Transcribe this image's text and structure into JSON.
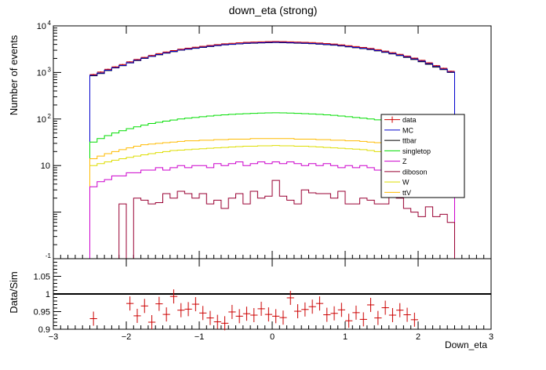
{
  "chart_data": [
    {
      "type": "histogram",
      "title": "down_eta (strong)",
      "ylabel": "Number  of  events",
      "xlabel": "",
      "ylog": true,
      "xlim": [
        -3,
        3
      ],
      "ylim": [
        0.1,
        10000
      ],
      "bin_edges_start": -2.5,
      "bin_width": 0.1,
      "y_ticks": [
        {
          "label": "10",
          "sup": "4",
          "value": 10000
        },
        {
          "label": "10",
          "sup": "3",
          "value": 1000
        },
        {
          "label": "10",
          "sup": "2",
          "value": 100
        },
        {
          "label": "10",
          "sup": "",
          "value": 10
        },
        {
          "label": "",
          "sup": "-1",
          "value": 0.1
        }
      ],
      "legend_position": "right",
      "legend": [
        {
          "name": "data",
          "color": "#cc0000",
          "marker": "cross"
        },
        {
          "name": "MC",
          "color": "#0000cc",
          "marker": "line"
        },
        {
          "name": "ttbar",
          "color": "#000000",
          "marker": "line"
        },
        {
          "name": "singletop",
          "color": "#00dd00",
          "marker": "line"
        },
        {
          "name": "Z",
          "color": "#cc00cc",
          "marker": "line"
        },
        {
          "name": "diboson",
          "color": "#990033",
          "marker": "line"
        },
        {
          "name": "W",
          "color": "#dddd00",
          "marker": "line"
        },
        {
          "name": "ttV",
          "color": "#ffbb00",
          "marker": "line"
        }
      ],
      "series": [
        {
          "name": "ttbar",
          "color": "#000000",
          "values": [
            850,
            950,
            1100,
            1250,
            1400,
            1600,
            1800,
            2000,
            2200,
            2400,
            2600,
            2800,
            3000,
            3150,
            3300,
            3450,
            3600,
            3750,
            3900,
            4000,
            4100,
            4200,
            4250,
            4300,
            4350,
            4380,
            4350,
            4300,
            4250,
            4200,
            4150,
            4050,
            3950,
            3850,
            3700,
            3550,
            3400,
            3250,
            3100,
            2900,
            2700,
            2500,
            2300,
            2100,
            1900,
            1700,
            1500,
            1300,
            1150,
            1000
          ]
        },
        {
          "name": "MC",
          "color": "#0000cc",
          "values": [
            870,
            970,
            1120,
            1270,
            1420,
            1620,
            1830,
            2030,
            2230,
            2440,
            2640,
            2840,
            3040,
            3190,
            3350,
            3500,
            3650,
            3800,
            3950,
            4050,
            4150,
            4250,
            4300,
            4350,
            4400,
            4430,
            4400,
            4350,
            4300,
            4250,
            4200,
            4100,
            4000,
            3900,
            3750,
            3600,
            3450,
            3300,
            3150,
            2950,
            2750,
            2550,
            2350,
            2150,
            1950,
            1750,
            1550,
            1350,
            1180,
            1020
          ]
        },
        {
          "name": "singletop",
          "color": "#00dd00",
          "values": [
            32,
            38,
            44,
            50,
            56,
            62,
            68,
            74,
            80,
            85,
            90,
            95,
            100,
            104,
            108,
            112,
            116,
            120,
            123,
            126,
            128,
            130,
            132,
            134,
            135,
            136,
            135,
            134,
            132,
            130,
            128,
            126,
            123,
            120,
            116,
            112,
            108,
            104,
            100,
            96,
            92,
            88,
            84,
            80,
            76,
            72,
            68,
            64,
            60,
            56
          ]
        },
        {
          "name": "W",
          "color": "#dddd00",
          "values": [
            10,
            11,
            12,
            13,
            14,
            15,
            16,
            17,
            18,
            19,
            20,
            21,
            21.5,
            22,
            22.5,
            23,
            23.5,
            24,
            24.5,
            25,
            25.5,
            26,
            26,
            26.5,
            26.5,
            27,
            26.5,
            26.5,
            26,
            26,
            25.5,
            25,
            24.5,
            24,
            23.5,
            23,
            22.5,
            22,
            21,
            20,
            19,
            18,
            17,
            16,
            15,
            14,
            13,
            12,
            11,
            10
          ]
        },
        {
          "name": "ttV",
          "color": "#ffbb00",
          "values": [
            14,
            16,
            18,
            20,
            22,
            24,
            26,
            28,
            29,
            30,
            31,
            32,
            33,
            34,
            34,
            35,
            35,
            36,
            36,
            37,
            37,
            37,
            38,
            38,
            38,
            38,
            38,
            38,
            37,
            37,
            37,
            36,
            36,
            35,
            35,
            34,
            34,
            33,
            32,
            31,
            30,
            29,
            28,
            27,
            26,
            25,
            24,
            22,
            20,
            18
          ]
        },
        {
          "name": "Z",
          "color": "#cc00cc",
          "values": [
            3.5,
            4.5,
            5,
            6,
            6,
            7,
            7,
            8,
            8,
            9,
            8,
            9,
            10,
            9,
            10,
            10,
            9,
            11,
            10,
            11,
            12,
            10,
            11,
            12,
            11,
            12,
            11,
            12,
            11,
            10,
            11,
            10,
            11,
            10,
            9,
            10,
            9,
            10,
            9,
            8,
            8,
            7,
            7,
            6,
            6,
            5,
            5,
            4.5,
            4,
            3.5
          ]
        },
        {
          "name": "diboson",
          "color": "#990033",
          "values": [
            0.1,
            0.1,
            0.1,
            0.1,
            1.5,
            0.1,
            2,
            1.8,
            1.5,
            1.6,
            2.5,
            2,
            2.8,
            2.5,
            2,
            2.5,
            1.5,
            1.8,
            1.2,
            2,
            2.5,
            1.5,
            2.8,
            2,
            2.2,
            4.8,
            2.2,
            1.8,
            1.5,
            3,
            2.6,
            2.5,
            2.5,
            2,
            2.8,
            1.5,
            1.5,
            2,
            1.8,
            1.5,
            1.5,
            2.2,
            2,
            1.2,
            1,
            0.8,
            1.3,
            0.8,
            0.9,
            0.6
          ]
        },
        {
          "name": "data",
          "color": "#cc0000",
          "values": [
            900,
            1020,
            1170,
            1320,
            1480,
            1690,
            1900,
            2110,
            2320,
            2540,
            2750,
            2950,
            3160,
            3320,
            3480,
            3640,
            3800,
            3960,
            4120,
            4220,
            4330,
            4430,
            4490,
            4540,
            4590,
            4620,
            4590,
            4540,
            4480,
            4430,
            4380,
            4280,
            4170,
            4070,
            3910,
            3750,
            3600,
            3440,
            3280,
            3080,
            2870,
            2660,
            2450,
            2240,
            2030,
            1820,
            1610,
            1400,
            1230,
            1060
          ]
        }
      ]
    },
    {
      "type": "scatter",
      "xlabel": "Down_eta",
      "ylabel": "Data/Sim",
      "xlim": [
        -3,
        3
      ],
      "ylim": [
        0.9,
        1.1
      ],
      "x_ticks": [
        "−3",
        "−2",
        "−1",
        "0",
        "1",
        "2",
        "3"
      ],
      "y_ticks": [
        "0.9",
        "0.95",
        "1",
        "1.05"
      ],
      "reference_line": 1,
      "points": {
        "x": [
          -2.45,
          -1.95,
          -1.85,
          -1.75,
          -1.65,
          -1.55,
          -1.45,
          -1.35,
          -1.25,
          -1.15,
          -1.05,
          -0.95,
          -0.85,
          -0.75,
          -0.65,
          -0.55,
          -0.45,
          -0.35,
          -0.25,
          -0.15,
          -0.05,
          0.05,
          0.15,
          0.25,
          0.35,
          0.45,
          0.55,
          0.65,
          0.75,
          0.85,
          0.95,
          1.05,
          1.15,
          1.25,
          1.35,
          1.45,
          1.55,
          1.65,
          1.75,
          1.85,
          1.95
        ],
        "y": [
          0.93,
          0.973,
          0.938,
          0.966,
          0.92,
          0.972,
          0.942,
          0.993,
          0.954,
          0.957,
          0.971,
          0.946,
          0.932,
          0.921,
          0.917,
          0.949,
          0.937,
          0.944,
          0.94,
          0.958,
          0.942,
          0.937,
          0.933,
          0.989,
          0.951,
          0.956,
          0.964,
          0.973,
          0.941,
          0.945,
          0.955,
          0.924,
          0.947,
          0.928,
          0.969,
          0.932,
          0.961,
          0.94,
          0.954,
          0.941,
          0.927
        ]
      }
    }
  ]
}
